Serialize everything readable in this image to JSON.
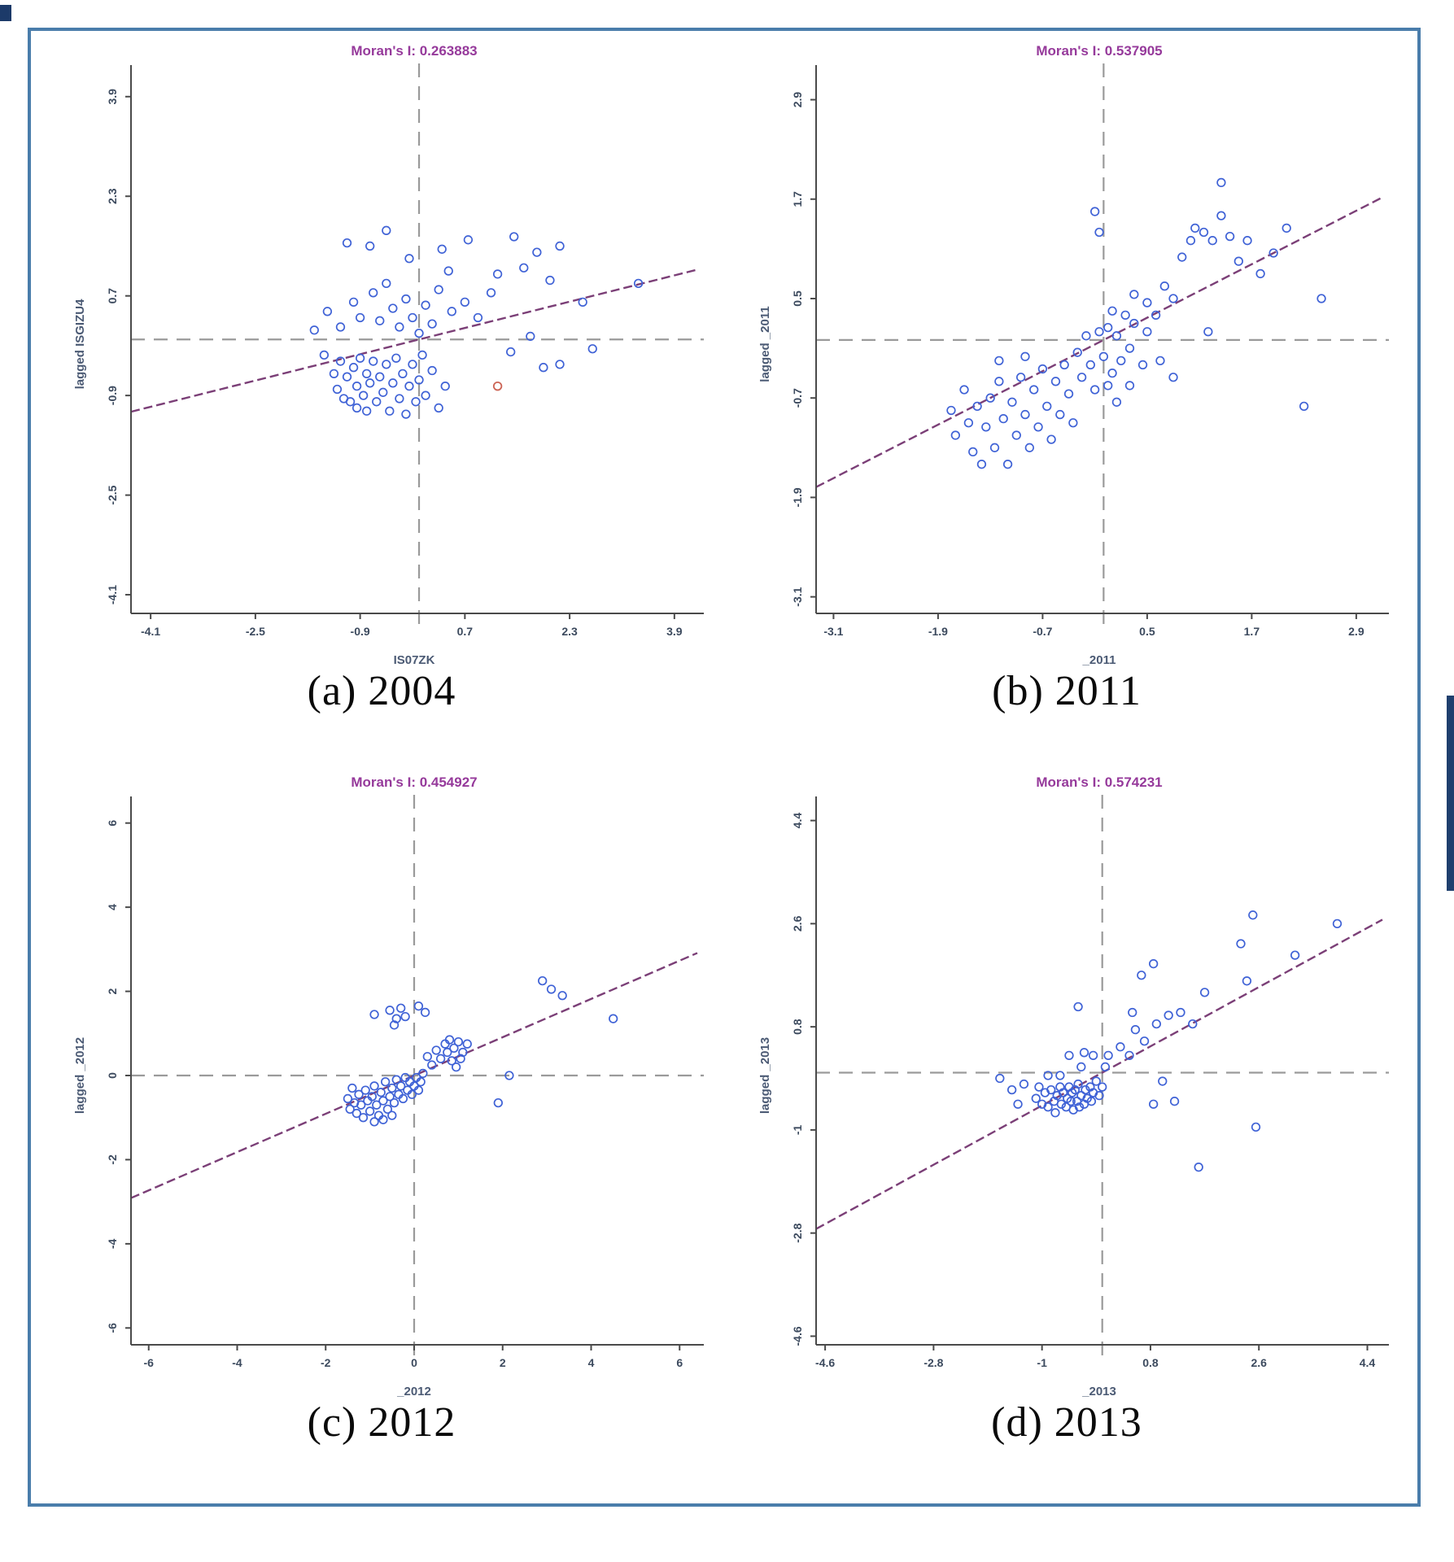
{
  "figure": {
    "border_color": "#4a7dab",
    "background": "#ffffff",
    "description": "Moran scatter plots, 2x2 grid"
  },
  "colors": {
    "title": "#963a9b",
    "point": "#3f62d6",
    "special_point": "#cc6455",
    "regression_line": "#7b3f77",
    "reference_line": "#9a9a9a",
    "axis": "#4a4a4a",
    "tick_label": "#3c4a5e",
    "axis_label": "#4b5a74",
    "caption": "#0a0a0a"
  },
  "chart_data": [
    {
      "id": "a",
      "type": "scatter",
      "caption": "(a) 2004",
      "title": "Moran's I: 0.263883",
      "moran_i": 0.263883,
      "xlabel": "IS07ZK",
      "ylabel": "lagged ISGIZU4",
      "x_ticks": [
        -4.1,
        -2.5,
        -0.9,
        0.7,
        2.3,
        3.9
      ],
      "y_ticks": [
        3.9,
        2.3,
        0.7,
        -0.9,
        -2.5,
        -4.1
      ],
      "xlim": [
        -4.4,
        4.25
      ],
      "ylim": [
        -4.4,
        4.25
      ],
      "regression": {
        "slope": 0.263883,
        "intercept": 0
      },
      "reference_lines": {
        "x": 0,
        "y": 0
      },
      "grid": false,
      "points": [
        [
          -1.45,
          -0.25
        ],
        [
          -1.3,
          -0.55
        ],
        [
          -1.25,
          -0.8
        ],
        [
          -1.2,
          -0.35
        ],
        [
          -1.15,
          -0.95
        ],
        [
          -1.1,
          -0.6
        ],
        [
          -1.05,
          -1.0
        ],
        [
          -1.0,
          -0.45
        ],
        [
          -0.95,
          -0.75
        ],
        [
          -0.95,
          -1.1
        ],
        [
          -0.9,
          -0.3
        ],
        [
          -0.85,
          -0.9
        ],
        [
          -0.8,
          -0.55
        ],
        [
          -0.8,
          -1.15
        ],
        [
          -0.75,
          -0.7
        ],
        [
          -0.7,
          -0.35
        ],
        [
          -0.65,
          -1.0
        ],
        [
          -0.6,
          -0.6
        ],
        [
          -0.55,
          -0.85
        ],
        [
          -0.5,
          -0.4
        ],
        [
          -0.45,
          -1.15
        ],
        [
          -0.4,
          -0.7
        ],
        [
          -0.35,
          -0.3
        ],
        [
          -0.3,
          -0.95
        ],
        [
          -0.25,
          -0.55
        ],
        [
          -0.2,
          -1.2
        ],
        [
          -0.15,
          -0.75
        ],
        [
          -0.1,
          -0.4
        ],
        [
          -0.05,
          -1.0
        ],
        [
          0.0,
          -0.65
        ],
        [
          0.05,
          -0.25
        ],
        [
          0.1,
          -0.9
        ],
        [
          0.2,
          -0.5
        ],
        [
          0.3,
          -1.1
        ],
        [
          0.4,
          -0.75
        ],
        [
          -1.6,
          0.15
        ],
        [
          -1.4,
          0.45
        ],
        [
          -1.2,
          0.2
        ],
        [
          -1.0,
          0.6
        ],
        [
          -0.9,
          0.35
        ],
        [
          -0.7,
          0.75
        ],
        [
          -0.6,
          0.3
        ],
        [
          -0.5,
          0.9
        ],
        [
          -0.4,
          0.5
        ],
        [
          -0.3,
          0.2
        ],
        [
          -0.2,
          0.65
        ],
        [
          -0.1,
          0.35
        ],
        [
          0.0,
          0.1
        ],
        [
          0.1,
          0.55
        ],
        [
          0.2,
          0.25
        ],
        [
          0.3,
          0.8
        ],
        [
          0.5,
          0.45
        ],
        [
          0.7,
          0.6
        ],
        [
          0.9,
          0.35
        ],
        [
          1.1,
          0.75
        ],
        [
          -1.1,
          1.55
        ],
        [
          -0.75,
          1.5
        ],
        [
          -0.5,
          1.75
        ],
        [
          -0.15,
          1.3
        ],
        [
          0.35,
          1.45
        ],
        [
          0.75,
          1.6
        ],
        [
          1.45,
          1.65
        ],
        [
          1.8,
          1.4
        ],
        [
          2.15,
          1.5
        ],
        [
          0.45,
          1.1
        ],
        [
          1.2,
          1.05
        ],
        [
          1.6,
          1.15
        ],
        [
          2.0,
          0.95
        ],
        [
          1.7,
          0.05
        ],
        [
          1.9,
          -0.45
        ],
        [
          2.15,
          -0.4
        ],
        [
          2.5,
          0.6
        ],
        [
          2.65,
          -0.15
        ],
        [
          3.35,
          0.9
        ],
        [
          1.4,
          -0.2
        ]
      ],
      "special_points": [
        [
          1.2,
          -0.75
        ]
      ]
    },
    {
      "id": "b",
      "type": "scatter",
      "caption": "(b) 2011",
      "title": "Moran's I: 0.537905",
      "moran_i": 0.537905,
      "xlabel": "_2011",
      "ylabel": "lagged _2011",
      "x_ticks": [
        -3.1,
        -1.9,
        -0.7,
        0.5,
        1.7,
        2.9
      ],
      "y_ticks": [
        2.9,
        1.7,
        0.5,
        -0.7,
        -1.9,
        -3.1
      ],
      "xlim": [
        -3.3,
        3.2
      ],
      "ylim": [
        -3.3,
        3.2
      ],
      "regression": {
        "slope": 0.537905,
        "intercept": 0
      },
      "reference_lines": {
        "x": 0,
        "y": 0
      },
      "grid": false,
      "points": [
        [
          -1.75,
          -0.85
        ],
        [
          -1.7,
          -1.15
        ],
        [
          -1.6,
          -0.6
        ],
        [
          -1.55,
          -1.0
        ],
        [
          -1.5,
          -1.35
        ],
        [
          -1.45,
          -0.8
        ],
        [
          -1.4,
          -1.5
        ],
        [
          -1.35,
          -1.05
        ],
        [
          -1.3,
          -0.7
        ],
        [
          -1.25,
          -1.3
        ],
        [
          -1.2,
          -0.5
        ],
        [
          -1.15,
          -0.95
        ],
        [
          -1.1,
          -1.5
        ],
        [
          -1.05,
          -0.75
        ],
        [
          -1.0,
          -1.15
        ],
        [
          -0.95,
          -0.45
        ],
        [
          -0.9,
          -0.9
        ],
        [
          -0.85,
          -1.3
        ],
        [
          -0.8,
          -0.6
        ],
        [
          -0.75,
          -1.05
        ],
        [
          -0.7,
          -0.35
        ],
        [
          -0.65,
          -0.8
        ],
        [
          -0.6,
          -1.2
        ],
        [
          -0.55,
          -0.5
        ],
        [
          -0.5,
          -0.9
        ],
        [
          -0.45,
          -0.3
        ],
        [
          -0.4,
          -0.65
        ],
        [
          -0.35,
          -1.0
        ],
        [
          -1.2,
          -0.25
        ],
        [
          -0.9,
          -0.2
        ],
        [
          -0.3,
          -0.15
        ],
        [
          -0.25,
          -0.45
        ],
        [
          -0.2,
          0.05
        ],
        [
          -0.15,
          -0.3
        ],
        [
          -0.1,
          -0.6
        ],
        [
          -0.05,
          0.1
        ],
        [
          0.0,
          -0.2
        ],
        [
          0.05,
          0.15
        ],
        [
          0.1,
          -0.4
        ],
        [
          0.15,
          0.05
        ],
        [
          0.2,
          -0.25
        ],
        [
          0.25,
          0.3
        ],
        [
          0.3,
          -0.1
        ],
        [
          0.35,
          0.2
        ],
        [
          0.1,
          0.35
        ],
        [
          0.3,
          -0.55
        ],
        [
          0.45,
          -0.3
        ],
        [
          0.5,
          0.1
        ],
        [
          0.15,
          -0.75
        ],
        [
          0.05,
          -0.55
        ],
        [
          0.35,
          0.55
        ],
        [
          0.5,
          0.45
        ],
        [
          0.6,
          0.3
        ],
        [
          0.7,
          0.65
        ],
        [
          0.8,
          0.5
        ],
        [
          0.9,
          1.0
        ],
        [
          1.0,
          1.2
        ],
        [
          1.05,
          1.35
        ],
        [
          1.15,
          1.3
        ],
        [
          1.25,
          1.2
        ],
        [
          1.35,
          1.5
        ],
        [
          1.45,
          1.25
        ],
        [
          1.55,
          0.95
        ],
        [
          1.65,
          1.2
        ],
        [
          1.8,
          0.8
        ],
        [
          1.95,
          1.05
        ],
        [
          2.1,
          1.35
        ],
        [
          0.65,
          -0.25
        ],
        [
          0.8,
          -0.45
        ],
        [
          1.2,
          0.1
        ],
        [
          1.35,
          1.9
        ],
        [
          -0.1,
          1.55
        ],
        [
          -0.05,
          1.3
        ],
        [
          2.5,
          0.5
        ],
        [
          2.3,
          -0.8
        ]
      ],
      "special_points": []
    },
    {
      "id": "c",
      "type": "scatter",
      "caption": "(c) 2012",
      "title": "Moran's I: 0.454927",
      "moran_i": 0.454927,
      "xlabel": "_2012",
      "ylabel": "lagged _2012",
      "x_ticks": [
        -6,
        -4,
        -2,
        0,
        2,
        4,
        6
      ],
      "y_ticks": [
        6,
        4,
        2,
        0,
        -2,
        -4,
        -6
      ],
      "xlim": [
        -6.4,
        6.4
      ],
      "ylim": [
        -6.4,
        6.4
      ],
      "regression": {
        "slope": 0.454927,
        "intercept": 0
      },
      "reference_lines": {
        "x": 0,
        "y": 0
      },
      "grid": false,
      "points": [
        [
          -1.5,
          -0.55
        ],
        [
          -1.45,
          -0.8
        ],
        [
          -1.4,
          -0.3
        ],
        [
          -1.35,
          -0.65
        ],
        [
          -1.3,
          -0.9
        ],
        [
          -1.25,
          -0.45
        ],
        [
          -1.2,
          -0.7
        ],
        [
          -1.15,
          -1.0
        ],
        [
          -1.1,
          -0.35
        ],
        [
          -1.05,
          -0.6
        ],
        [
          -1.0,
          -0.85
        ],
        [
          -0.95,
          -0.5
        ],
        [
          -0.9,
          -0.25
        ],
        [
          -0.85,
          -0.7
        ],
        [
          -0.8,
          -0.95
        ],
        [
          -0.75,
          -0.4
        ],
        [
          -0.7,
          -0.6
        ],
        [
          -0.65,
          -0.15
        ],
        [
          -0.6,
          -0.8
        ],
        [
          -0.55,
          -0.5
        ],
        [
          -0.5,
          -0.3
        ],
        [
          -0.45,
          -0.65
        ],
        [
          -0.4,
          -0.1
        ],
        [
          -0.35,
          -0.45
        ],
        [
          -0.3,
          -0.25
        ],
        [
          -0.25,
          -0.55
        ],
        [
          -0.2,
          -0.05
        ],
        [
          -0.15,
          -0.35
        ],
        [
          -0.1,
          -0.15
        ],
        [
          -0.05,
          -0.45
        ],
        [
          0.0,
          -0.25
        ],
        [
          0.05,
          -0.05
        ],
        [
          0.1,
          -0.35
        ],
        [
          0.15,
          -0.15
        ],
        [
          0.2,
          0.05
        ],
        [
          -0.7,
          -1.05
        ],
        [
          -0.9,
          -1.1
        ],
        [
          -0.5,
          -0.95
        ],
        [
          0.3,
          0.45
        ],
        [
          0.4,
          0.25
        ],
        [
          0.5,
          0.6
        ],
        [
          0.6,
          0.4
        ],
        [
          0.7,
          0.75
        ],
        [
          0.75,
          0.55
        ],
        [
          0.8,
          0.85
        ],
        [
          0.9,
          0.65
        ],
        [
          1.0,
          0.8
        ],
        [
          1.1,
          0.55
        ],
        [
          1.2,
          0.75
        ],
        [
          0.85,
          0.35
        ],
        [
          0.95,
          0.2
        ],
        [
          1.05,
          0.4
        ],
        [
          -0.55,
          1.55
        ],
        [
          -0.4,
          1.35
        ],
        [
          -0.3,
          1.6
        ],
        [
          -0.2,
          1.4
        ],
        [
          -0.45,
          1.2
        ],
        [
          0.1,
          1.65
        ],
        [
          0.25,
          1.5
        ],
        [
          -0.9,
          1.45
        ],
        [
          2.9,
          2.25
        ],
        [
          3.1,
          2.05
        ],
        [
          3.35,
          1.9
        ],
        [
          4.5,
          1.35
        ],
        [
          2.15,
          0.0
        ],
        [
          1.9,
          -0.65
        ]
      ],
      "special_points": []
    },
    {
      "id": "d",
      "type": "scatter",
      "caption": "(d) 2013",
      "title": "Moran's I: 0.574231",
      "moran_i": 0.574231,
      "xlabel": "_2013",
      "ylabel": "lagged _2013",
      "x_ticks": [
        -4.6,
        -2.8,
        -1,
        0.8,
        2.6,
        4.4
      ],
      "y_ticks": [
        4.4,
        2.6,
        0.8,
        -1,
        -2.8,
        -4.6
      ],
      "xlim": [
        -4.75,
        4.65
      ],
      "ylim": [
        -4.75,
        4.65
      ],
      "regression": {
        "slope": 0.574231,
        "intercept": 0
      },
      "reference_lines": {
        "x": 0,
        "y": 0
      },
      "grid": false,
      "points": [
        [
          -1.1,
          -0.45
        ],
        [
          -1.05,
          -0.25
        ],
        [
          -1.0,
          -0.55
        ],
        [
          -0.95,
          -0.35
        ],
        [
          -0.9,
          -0.6
        ],
        [
          -0.85,
          -0.3
        ],
        [
          -0.8,
          -0.5
        ],
        [
          -0.78,
          -0.7
        ],
        [
          -0.75,
          -0.4
        ],
        [
          -0.7,
          -0.25
        ],
        [
          -0.68,
          -0.55
        ],
        [
          -0.65,
          -0.35
        ],
        [
          -0.6,
          -0.6
        ],
        [
          -0.58,
          -0.45
        ],
        [
          -0.55,
          -0.25
        ],
        [
          -0.52,
          -0.5
        ],
        [
          -0.5,
          -0.35
        ],
        [
          -0.48,
          -0.65
        ],
        [
          -0.45,
          -0.3
        ],
        [
          -0.42,
          -0.5
        ],
        [
          -0.4,
          -0.2
        ],
        [
          -0.38,
          -0.6
        ],
        [
          -0.35,
          -0.4
        ],
        [
          -0.3,
          -0.55
        ],
        [
          -0.28,
          -0.3
        ],
        [
          -0.25,
          -0.45
        ],
        [
          -0.2,
          -0.25
        ],
        [
          -0.18,
          -0.5
        ],
        [
          -0.15,
          -0.35
        ],
        [
          -0.1,
          -0.15
        ],
        [
          -0.05,
          -0.4
        ],
        [
          0.0,
          -0.25
        ],
        [
          -0.9,
          -0.05
        ],
        [
          -0.7,
          -0.05
        ],
        [
          -1.3,
          -0.2
        ],
        [
          -1.5,
          -0.3
        ],
        [
          -1.7,
          -0.1
        ],
        [
          -1.4,
          -0.55
        ],
        [
          -0.35,
          0.1
        ],
        [
          -0.15,
          0.3
        ],
        [
          -0.3,
          0.35
        ],
        [
          0.05,
          0.1
        ],
        [
          0.1,
          0.3
        ],
        [
          -0.55,
          0.3
        ],
        [
          0.3,
          0.45
        ],
        [
          0.45,
          0.3
        ],
        [
          0.55,
          0.75
        ],
        [
          0.7,
          0.55
        ],
        [
          0.9,
          0.85
        ],
        [
          1.1,
          1.0
        ],
        [
          1.3,
          1.05
        ],
        [
          1.5,
          0.85
        ],
        [
          1.7,
          1.4
        ],
        [
          2.4,
          1.6
        ],
        [
          0.5,
          1.05
        ],
        [
          0.85,
          1.9
        ],
        [
          0.65,
          1.7
        ],
        [
          -0.4,
          1.15
        ],
        [
          2.5,
          2.75
        ],
        [
          2.3,
          2.25
        ],
        [
          3.2,
          2.05
        ],
        [
          3.9,
          2.6
        ],
        [
          1.2,
          -0.5
        ],
        [
          2.55,
          -0.95
        ],
        [
          1.6,
          -1.65
        ],
        [
          0.85,
          -0.55
        ],
        [
          1.0,
          -0.15
        ]
      ],
      "special_points": []
    }
  ]
}
